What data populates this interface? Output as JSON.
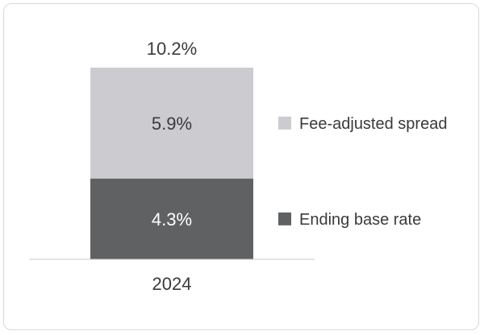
{
  "chart_data": {
    "type": "bar",
    "stacked": true,
    "categories": [
      "2024"
    ],
    "series": [
      {
        "name": "Ending base rate",
        "values": [
          4.3
        ],
        "labels": [
          "4.3%"
        ],
        "color": "#5f6163",
        "label_color": "#ffffff"
      },
      {
        "name": "Fee-adjusted spread",
        "values": [
          5.9
        ],
        "labels": [
          "5.9%"
        ],
        "color": "#cccbd0",
        "label_color": "#3a3a3a"
      }
    ],
    "totals": [
      10.2
    ],
    "total_labels": [
      "10.2%"
    ],
    "ylim": [
      0,
      10.2
    ],
    "legend_position": "right",
    "grid": false,
    "title": "",
    "xlabel": "",
    "ylabel": ""
  }
}
